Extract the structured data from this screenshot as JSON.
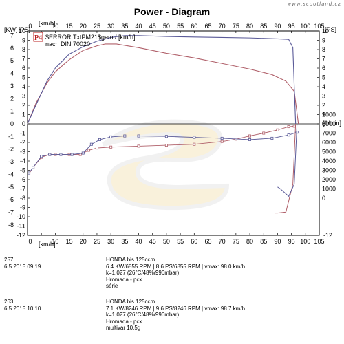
{
  "title": "Power - Diagram",
  "watermark": "www.scootland.cz",
  "chart_data": {
    "type": "line",
    "title": "Power - Diagram",
    "badge": "P4",
    "legend_note_line1": "$ERROR:TxtPM21$gem / [km/h]",
    "legend_note_line2": "nach DIN 70020",
    "x_label_top": "[km/h]",
    "x_label_bottom": "[km/h]",
    "y_left_label_kw": "[KW]",
    "y_left_label_ps": "[PS]",
    "y_right_label_ps": "[PS]",
    "y_right_label_rpm": "[1/min]",
    "xlim": [
      0,
      105
    ],
    "x_ticks": [
      "0",
      "5",
      "10",
      "15",
      "20",
      "25",
      "30",
      "35",
      "40",
      "45",
      "50",
      "55",
      "60",
      "65",
      "70",
      "75",
      "80",
      "85",
      "90",
      "95",
      "100",
      "105"
    ],
    "ylim": [
      -12,
      10
    ],
    "y_left_ticks": [
      "10",
      "9",
      "8",
      "7",
      "6",
      "5",
      "4",
      "3",
      "2",
      "1",
      "0",
      "-1",
      "-2",
      "-3",
      "-4",
      "-5",
      "-6",
      "-7",
      "-8",
      "-9",
      "-10",
      "-11",
      "-12"
    ],
    "y_kw_ticks": [
      "7",
      "6",
      "5",
      "4",
      "3",
      "2",
      "1",
      "0",
      "-1",
      "-2",
      "-3",
      "-4",
      "-5",
      "-6",
      "-7",
      "-8"
    ],
    "y_right_ps_ticks": [
      "10",
      "9",
      "8",
      "7",
      "6",
      "5",
      "4",
      "3",
      "2",
      "1",
      "0"
    ],
    "rpm_ticks": [
      "9000",
      "8000",
      "7000",
      "6000",
      "5000",
      "4000",
      "3000",
      "2000",
      "1000",
      "0"
    ],
    "rpm_range": [
      0,
      9000
    ],
    "grid": false,
    "series": [
      {
        "id": "257",
        "color": "#b0606a",
        "power_ps": [
          [
            0,
            0
          ],
          [
            3,
            2.2
          ],
          [
            7,
            4.4
          ],
          [
            10,
            5.6
          ],
          [
            15,
            6.9
          ],
          [
            20,
            7.9
          ],
          [
            25,
            8.4
          ],
          [
            28,
            8.6
          ],
          [
            32,
            8.6
          ],
          [
            40,
            8.2
          ],
          [
            50,
            7.6
          ],
          [
            60,
            7.1
          ],
          [
            70,
            6.5
          ],
          [
            80,
            5.9
          ],
          [
            88,
            5.3
          ],
          [
            93,
            4.6
          ],
          [
            96,
            3.5
          ],
          [
            97.5,
            0
          ]
        ],
        "rpm": [
          [
            0.5,
            2600
          ],
          [
            2,
            3300
          ],
          [
            5,
            4400
          ],
          [
            8,
            4700
          ],
          [
            10,
            4700
          ],
          [
            15,
            4700
          ],
          [
            19,
            4700
          ],
          [
            22,
            5150
          ],
          [
            25,
            5400
          ],
          [
            30,
            5500
          ],
          [
            40,
            5600
          ],
          [
            50,
            5700
          ],
          [
            60,
            5800
          ],
          [
            70,
            6100
          ],
          [
            75,
            6350
          ],
          [
            80,
            6700
          ],
          [
            85,
            7000
          ],
          [
            90,
            7350
          ],
          [
            94,
            7700
          ],
          [
            96,
            7750
          ]
        ],
        "decel_ps": [
          [
            96.5,
            0
          ],
          [
            95.5,
            -6.5
          ],
          [
            93,
            -9.5
          ],
          [
            90,
            -9.6
          ],
          [
            89,
            -9.6
          ]
        ]
      },
      {
        "id": "263",
        "color": "#5a5a98",
        "power_ps": [
          [
            0,
            0
          ],
          [
            3,
            2.0
          ],
          [
            7,
            4.6
          ],
          [
            10,
            6.0
          ],
          [
            15,
            7.5
          ],
          [
            20,
            8.3
          ],
          [
            25,
            8.9
          ],
          [
            30,
            9.3
          ],
          [
            35,
            9.5
          ],
          [
            40,
            9.5
          ],
          [
            50,
            9.4
          ],
          [
            60,
            9.35
          ],
          [
            70,
            9.3
          ],
          [
            80,
            9.25
          ],
          [
            90,
            9.15
          ],
          [
            94,
            9.1
          ],
          [
            95.5,
            8.2
          ],
          [
            96,
            4.0
          ],
          [
            96.5,
            0
          ]
        ],
        "rpm": [
          [
            0.5,
            2700
          ],
          [
            2,
            3300
          ],
          [
            5,
            4500
          ],
          [
            8,
            4700
          ],
          [
            12,
            4700
          ],
          [
            16,
            4700
          ],
          [
            20,
            4850
          ],
          [
            23,
            5800
          ],
          [
            26,
            6300
          ],
          [
            30,
            6600
          ],
          [
            35,
            6700
          ],
          [
            40,
            6700
          ],
          [
            50,
            6650
          ],
          [
            60,
            6550
          ],
          [
            70,
            6450
          ],
          [
            80,
            6300
          ],
          [
            88,
            6450
          ],
          [
            94,
            6800
          ],
          [
            97,
            7100
          ]
        ],
        "decel_ps": [
          [
            97,
            0
          ],
          [
            96,
            -6.5
          ],
          [
            94,
            -7.8
          ],
          [
            91,
            -7.0
          ],
          [
            90,
            -6.8
          ]
        ]
      }
    ]
  },
  "runs": [
    {
      "id": "257",
      "date": "6.5.2015  09:19",
      "line_color": "#b0606a",
      "vehicle": "HONDA bis     125ccm",
      "metrics": "6.4 KW/6855 RPM  |  8.6 PS/6855 RPM  |  vmax: 98.0 km/h",
      "conditions": "k=1,027 (26°C/48%/996mbar)",
      "owner": "Hromada - pcx",
      "note": "série"
    },
    {
      "id": "263",
      "date": "6.5.2015  10:10",
      "line_color": "#5a5a98",
      "vehicle": "HONDA bis     125ccm",
      "metrics": "7.1 KW/8246 RPM  |  9.6 PS/8246 RPM  |  vmax: 98.7 km/h",
      "conditions": "k=1,027 (26°C/48%/996mbar)",
      "owner": "Hromada - pcx",
      "note": "multivar 10,5g"
    }
  ]
}
